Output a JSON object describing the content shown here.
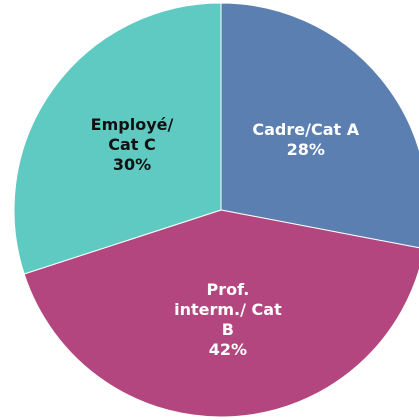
{
  "chart_data": {
    "type": "pie",
    "categories": [
      "Cadre/Cat A",
      "Prof. interm./ Cat B",
      "Employé/ Cat C"
    ],
    "values": [
      28,
      42,
      30
    ],
    "value_labels": [
      "28%",
      "42%",
      "30%"
    ],
    "colors": [
      "#5a7fb0",
      "#b4467f",
      "#5ecac1"
    ],
    "label_colors": [
      "#ffffff",
      "#ffffff",
      "#111111"
    ]
  }
}
